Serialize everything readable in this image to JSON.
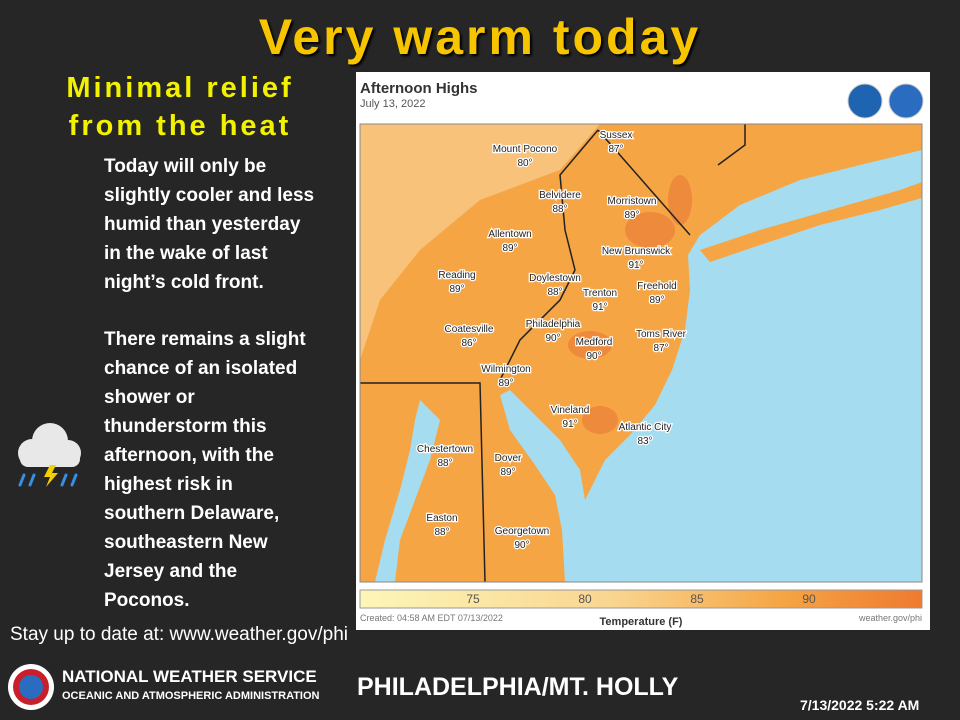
{
  "header": {
    "title": "Very warm today",
    "subtitle": [
      "Minimal relief",
      "from the heat"
    ]
  },
  "body": {
    "paragraphs": [
      [
        "Today will only be",
        "slightly cooler and less",
        "humid than yesterday",
        "in the wake of last",
        "night’s cold front."
      ],
      [
        "There remains a slight",
        "chance of an isolated",
        "shower or",
        "thunderstorm this",
        "afternoon, with the",
        "highest risk in",
        "southern Delaware,",
        "southeastern New",
        "Jersey and the",
        "Poconos."
      ]
    ]
  },
  "map": {
    "title": "Afternoon Highs",
    "date": "July 13, 2022",
    "cities": [
      {
        "name": "Sussex",
        "temp": "87°"
      },
      {
        "name": "Mount Pocono",
        "temp": "80°"
      },
      {
        "name": "Belvidere",
        "temp": "88°"
      },
      {
        "name": "Morristown",
        "temp": "89°"
      },
      {
        "name": "Allentown",
        "temp": "89°"
      },
      {
        "name": "New Brunswick",
        "temp": "91°"
      },
      {
        "name": "Reading",
        "temp": "89°"
      },
      {
        "name": "Doylestown",
        "temp": "88°"
      },
      {
        "name": "Trenton",
        "temp": "91°"
      },
      {
        "name": "Freehold",
        "temp": "89°"
      },
      {
        "name": "Coatesville",
        "temp": "86°"
      },
      {
        "name": "Philadelphia",
        "temp": "90°"
      },
      {
        "name": "Toms River",
        "temp": "87°"
      },
      {
        "name": "Medford",
        "temp": "90°"
      },
      {
        "name": "Wilmington",
        "temp": "89°"
      },
      {
        "name": "Vineland",
        "temp": "91°"
      },
      {
        "name": "Atlantic City",
        "temp": "83°"
      },
      {
        "name": "Chestertown",
        "temp": "88°"
      },
      {
        "name": "Dover",
        "temp": "89°"
      },
      {
        "name": "Easton",
        "temp": "88°"
      },
      {
        "name": "Georgetown",
        "temp": "90°"
      }
    ],
    "legend": {
      "ticks": [
        75,
        80,
        85,
        90
      ],
      "title": "Temperature (F)",
      "created": "Created: 04:58 AM EDT 07/13/2022",
      "source": "weather.gov/phi"
    }
  },
  "footer": {
    "link": "Stay up to date at: www.weather.gov/phi",
    "agency": "NATIONAL WEATHER SERVICE",
    "parent": "OCEANIC AND ATMOSPHERIC ADMINISTRATION",
    "office": "PHILADELPHIA/MT. HOLLY",
    "timestamp": "7/13/2022 5:22 AM"
  }
}
